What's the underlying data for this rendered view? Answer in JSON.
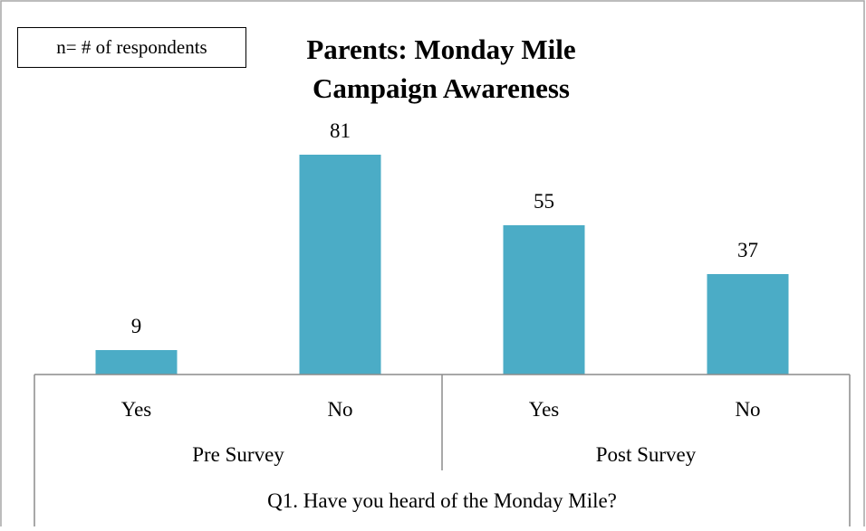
{
  "legend_note": "n= # of respondents",
  "chart_data": {
    "type": "bar",
    "title_lines": [
      "Parents: Monday Mile",
      "Campaign Awareness"
    ],
    "categories": [
      "Yes",
      "No",
      "Yes",
      "No"
    ],
    "groups": [
      {
        "label": "Pre Survey",
        "categories": [
          "Yes",
          "No"
        ]
      },
      {
        "label": "Post Survey",
        "categories": [
          "Yes",
          "No"
        ]
      }
    ],
    "values": [
      9,
      81,
      55,
      37
    ],
    "data_labels": [
      "9",
      "81",
      "55",
      "37"
    ],
    "xlabel": "Q1. Have you heard of the Monday Mile?",
    "ylabel": "",
    "bar_color": "#4BACC6",
    "legend": "none"
  }
}
